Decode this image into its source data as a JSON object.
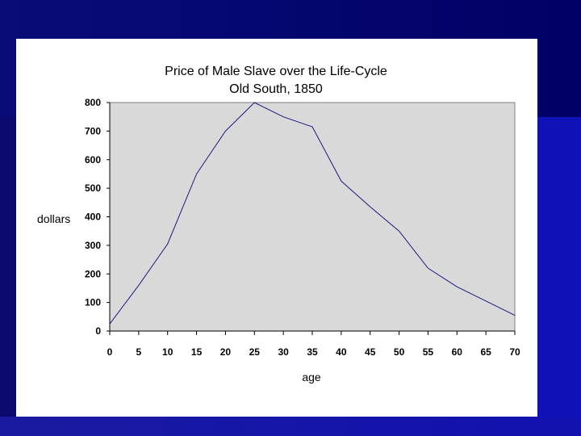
{
  "chart_data": {
    "type": "line",
    "title": "Price of Male Slave over the Life-Cycle",
    "subtitle": "Old South, 1850",
    "xlabel": "age",
    "ylabel": "dollars",
    "xlim": [
      0,
      70
    ],
    "ylim": [
      0,
      800
    ],
    "x_ticks": [
      "0",
      "5",
      "10",
      "15",
      "20",
      "25",
      "30",
      "35",
      "40",
      "45",
      "50",
      "55",
      "60",
      "65",
      "70"
    ],
    "y_ticks": [
      "0",
      "100",
      "200",
      "300",
      "400",
      "500",
      "600",
      "700",
      "800"
    ],
    "grid": false,
    "plot_background": "#d9d9d9",
    "line_color": "#1a1a80",
    "series": [
      {
        "x": [
          0,
          5,
          10,
          15,
          20,
          25,
          30,
          35,
          40,
          45,
          50,
          55,
          60,
          65,
          70
        ],
        "values": [
          25,
          160,
          305,
          550,
          700,
          800,
          750,
          715,
          525,
          435,
          350,
          220,
          155,
          105,
          55
        ]
      }
    ]
  }
}
